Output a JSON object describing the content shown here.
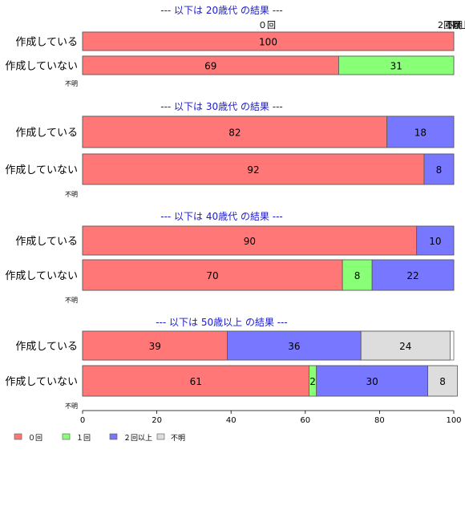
{
  "chart_data": {
    "type": "bar",
    "orientation": "horizontal",
    "stacked": true,
    "xlim": [
      0,
      100
    ],
    "x_ticks": [
      "0",
      "20",
      "40",
      "60",
      "80",
      "100"
    ],
    "legend": {
      "placement": "bottom-left",
      "entries": [
        {
          "name": "０回",
          "color": "#ff7777"
        },
        {
          "name": "１回",
          "color": "#88ff77"
        },
        {
          "name": "２回以上",
          "color": "#7777ff"
        },
        {
          "name": "不明",
          "color": "#dddddd"
        }
      ]
    },
    "top_labels": [
      "０回",
      "1回",
      "2回以上",
      "不明"
    ],
    "groups": [
      {
        "title": "--- 以下は 20歳代 の結果 ---",
        "unknown_label": "不明",
        "rows": [
          {
            "label": "作成している",
            "values": [
              100,
              0,
              0,
              0
            ],
            "value_labels": [
              "100",
              "",
              "",
              ""
            ]
          },
          {
            "label": "作成していない",
            "values": [
              69,
              31,
              0,
              0
            ],
            "value_labels": [
              "69",
              "31",
              "",
              ""
            ]
          }
        ]
      },
      {
        "title": "--- 以下は 30歳代 の結果 ---",
        "unknown_label": "不明",
        "rows": [
          {
            "label": "作成している",
            "values": [
              82,
              0,
              18,
              0
            ],
            "value_labels": [
              "82",
              "",
              "18",
              ""
            ]
          },
          {
            "label": "作成していない",
            "values": [
              92,
              0,
              8,
              0
            ],
            "value_labels": [
              "92",
              "",
              "8",
              ""
            ]
          }
        ]
      },
      {
        "title": "--- 以下は 40歳代 の結果 ---",
        "unknown_label": "不明",
        "rows": [
          {
            "label": "作成している",
            "values": [
              90,
              0,
              10,
              0
            ],
            "value_labels": [
              "90",
              "",
              "10",
              ""
            ]
          },
          {
            "label": "作成していない",
            "values": [
              70,
              8,
              22,
              0
            ],
            "value_labels": [
              "70",
              "8",
              "22",
              ""
            ]
          }
        ]
      },
      {
        "title": "--- 以下は 50歳以上 の結果 ---",
        "unknown_label": "不明",
        "rows": [
          {
            "label": "作成している",
            "values": [
              39,
              0,
              36,
              24
            ],
            "value_labels": [
              "39",
              "",
              "36",
              "24"
            ]
          },
          {
            "label": "作成していない",
            "values": [
              61,
              2,
              30,
              8
            ],
            "value_labels": [
              "61",
              "2",
              "30",
              "8"
            ]
          }
        ]
      }
    ]
  }
}
